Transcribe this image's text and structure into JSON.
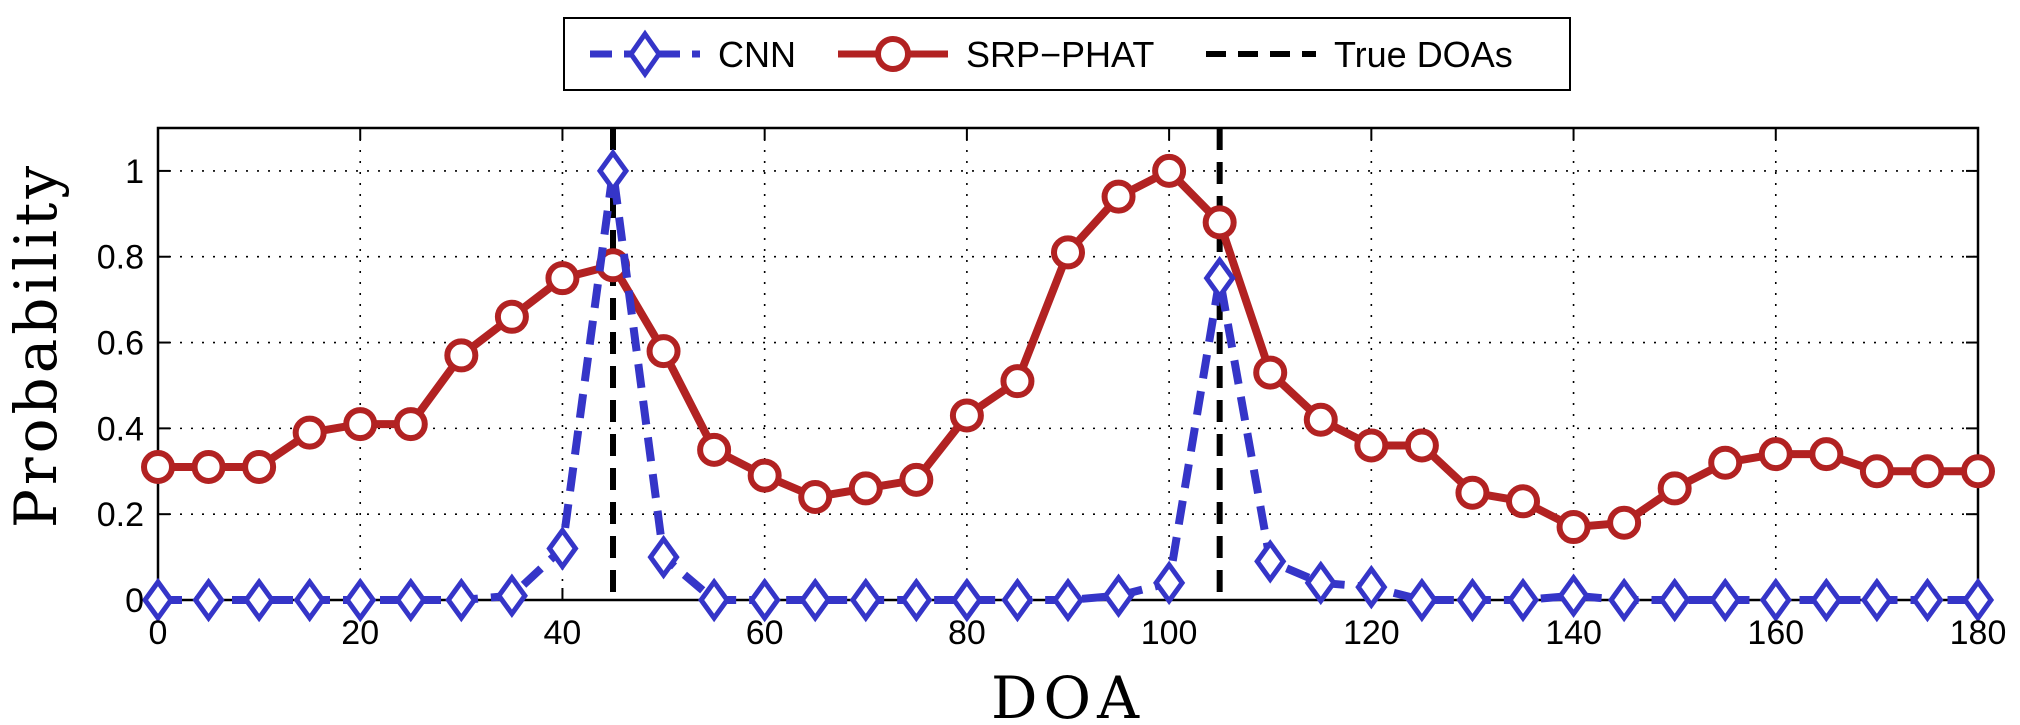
{
  "chart_data": {
    "type": "line",
    "xlabel": "DOA",
    "ylabel": "Probability",
    "xlim": [
      0,
      180
    ],
    "ylim": [
      0,
      1.1
    ],
    "xticks": [
      0,
      20,
      40,
      60,
      80,
      100,
      120,
      140,
      160,
      180
    ],
    "yticks": [
      0,
      0.2,
      0.4,
      0.6,
      0.8,
      1
    ],
    "ytick_labels": [
      "0",
      "0.2",
      "0.4",
      "0.6",
      "0.8",
      "1"
    ],
    "grid": true,
    "legend_position": "top-center (outside plot)",
    "x": [
      0,
      5,
      10,
      15,
      20,
      25,
      30,
      35,
      40,
      45,
      50,
      55,
      60,
      65,
      70,
      75,
      80,
      85,
      90,
      95,
      100,
      105,
      110,
      115,
      120,
      125,
      130,
      135,
      140,
      145,
      150,
      155,
      160,
      165,
      170,
      175,
      180
    ],
    "series": [
      {
        "name": "CNN",
        "color": "#3535c8",
        "style": "dashed",
        "marker": "diamond",
        "values": [
          0,
          0,
          0,
          0,
          0,
          0,
          0,
          0.01,
          0.12,
          1.0,
          0.1,
          0,
          0,
          0,
          0,
          0,
          0,
          0,
          0,
          0.01,
          0.04,
          0.75,
          0.09,
          0.04,
          0.03,
          0,
          0,
          0,
          0.01,
          0,
          0,
          0,
          0,
          0,
          0,
          0,
          0
        ]
      },
      {
        "name": "SRP−PHAT",
        "color": "#b22222",
        "style": "solid",
        "marker": "circle",
        "values": [
          0.31,
          0.31,
          0.31,
          0.39,
          0.41,
          0.41,
          0.57,
          0.66,
          0.75,
          0.78,
          0.58,
          0.35,
          0.29,
          0.24,
          0.26,
          0.28,
          0.43,
          0.51,
          0.81,
          0.94,
          1.0,
          0.88,
          0.53,
          0.42,
          0.36,
          0.36,
          0.25,
          0.23,
          0.17,
          0.18,
          0.26,
          0.32,
          0.34,
          0.34,
          0.3,
          0.3,
          0.3
        ]
      }
    ],
    "vlines": {
      "name": "True DOAs",
      "color": "#000000",
      "style": "dashed",
      "x": [
        45,
        105
      ]
    }
  }
}
